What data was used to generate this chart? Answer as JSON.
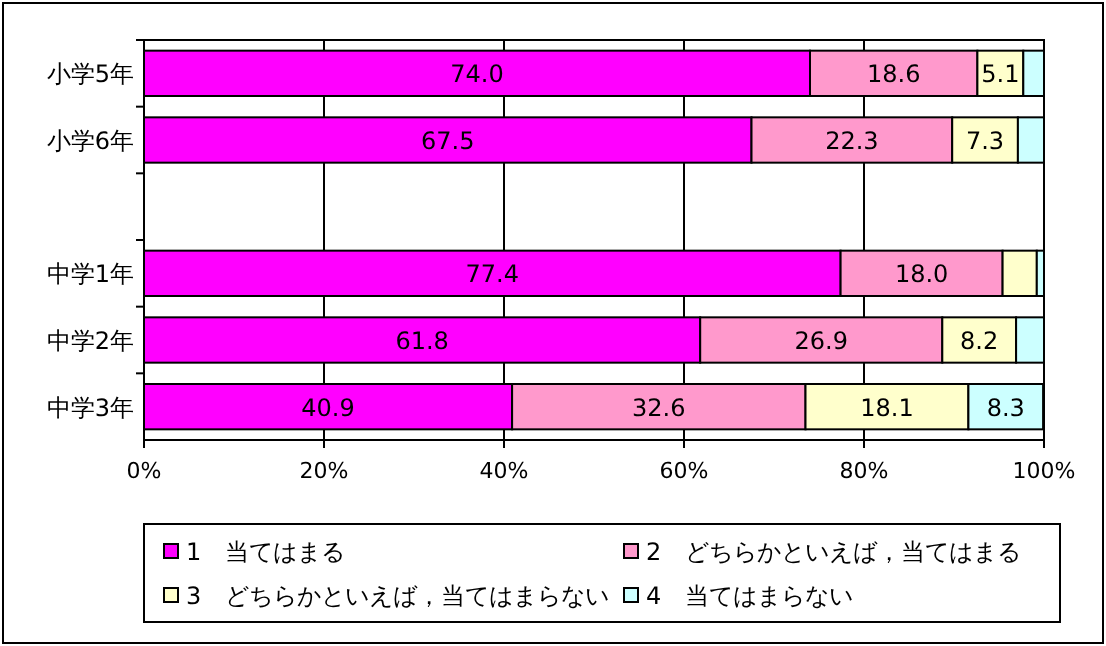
{
  "chart_data": {
    "type": "bar",
    "orientation": "horizontal",
    "stacked": true,
    "categories": [
      "小学5年",
      "小学6年",
      null,
      "中学1年",
      "中学2年",
      "中学3年"
    ],
    "series": [
      {
        "name": "1　当てはまる",
        "color": "#ff00ff",
        "values": [
          74.0,
          67.5,
          null,
          77.4,
          61.8,
          40.9
        ],
        "value_labels": [
          "74.0",
          "67.5",
          null,
          "77.4",
          "61.8",
          "40.9"
        ]
      },
      {
        "name": "2　どちらかといえば，当てはまる",
        "color": "#ff99cc",
        "values": [
          18.6,
          22.3,
          null,
          18.0,
          26.9,
          32.6
        ],
        "value_labels": [
          "18.6",
          "22.3",
          null,
          "18.0",
          "26.9",
          "32.6"
        ]
      },
      {
        "name": "3　どちらかといえば，当てはまらない",
        "color": "#ffffcc",
        "values": [
          5.1,
          7.3,
          null,
          3.8,
          8.2,
          18.1
        ],
        "value_labels": [
          "5.1",
          "7.3",
          null,
          null,
          "8.2",
          "18.1"
        ]
      },
      {
        "name": "4　当てはまらない",
        "color": "#ccffff",
        "values": [
          2.3,
          2.9,
          null,
          0.8,
          3.1,
          8.3
        ],
        "value_labels": [
          null,
          null,
          null,
          null,
          null,
          "8.3"
        ]
      }
    ],
    "xlim": [
      0,
      100
    ],
    "xticks": [
      {
        "value": 0,
        "label": "0%"
      },
      {
        "value": 20,
        "label": "20%"
      },
      {
        "value": 40,
        "label": "40%"
      },
      {
        "value": 60,
        "label": "60%"
      },
      {
        "value": 80,
        "label": "80%"
      },
      {
        "value": 100,
        "label": "100%"
      }
    ],
    "grid": "x",
    "legend": "bottom"
  }
}
